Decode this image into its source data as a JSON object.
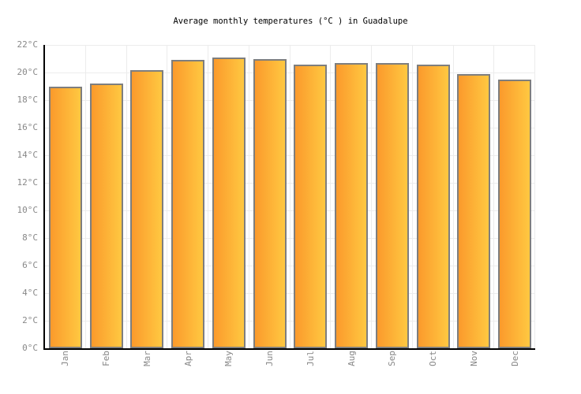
{
  "chart_data": {
    "type": "bar",
    "title": "Average monthly temperatures (°C ) in Guadalupe",
    "categories": [
      "Jan",
      "Feb",
      "Mar",
      "Apr",
      "May",
      "Jun",
      "Jul",
      "Aug",
      "Sep",
      "Oct",
      "Nov",
      "Dec"
    ],
    "values": [
      19.0,
      19.2,
      20.2,
      20.9,
      21.1,
      21.0,
      20.6,
      20.7,
      20.7,
      20.6,
      19.9,
      19.5
    ],
    "unit": "°C",
    "xlabel": "",
    "ylabel": "",
    "ylim": [
      0,
      22
    ],
    "y_tick_step": 2,
    "y_ticks": [
      {
        "value": 0,
        "label": "0°C"
      },
      {
        "value": 2,
        "label": "2°C"
      },
      {
        "value": 4,
        "label": "4°C"
      },
      {
        "value": 6,
        "label": "6°C"
      },
      {
        "value": 8,
        "label": "8°C"
      },
      {
        "value": 10,
        "label": "10°C"
      },
      {
        "value": 12,
        "label": "12°C"
      },
      {
        "value": 14,
        "label": "14°C"
      },
      {
        "value": 16,
        "label": "16°C"
      },
      {
        "value": 18,
        "label": "18°C"
      },
      {
        "value": 20,
        "label": "20°C"
      },
      {
        "value": 22,
        "label": "22°C"
      }
    ],
    "grid": true,
    "legend": false,
    "styles": {
      "background": "#ffffff",
      "bar_gradient_left": "#fb9a2c",
      "bar_gradient_right": "#ffc841",
      "bar_border": "#7e7e7e",
      "axis_line": "#000000",
      "gridline": "#ececec",
      "tick_label_color": "#888888",
      "title_color": "#000000"
    }
  }
}
